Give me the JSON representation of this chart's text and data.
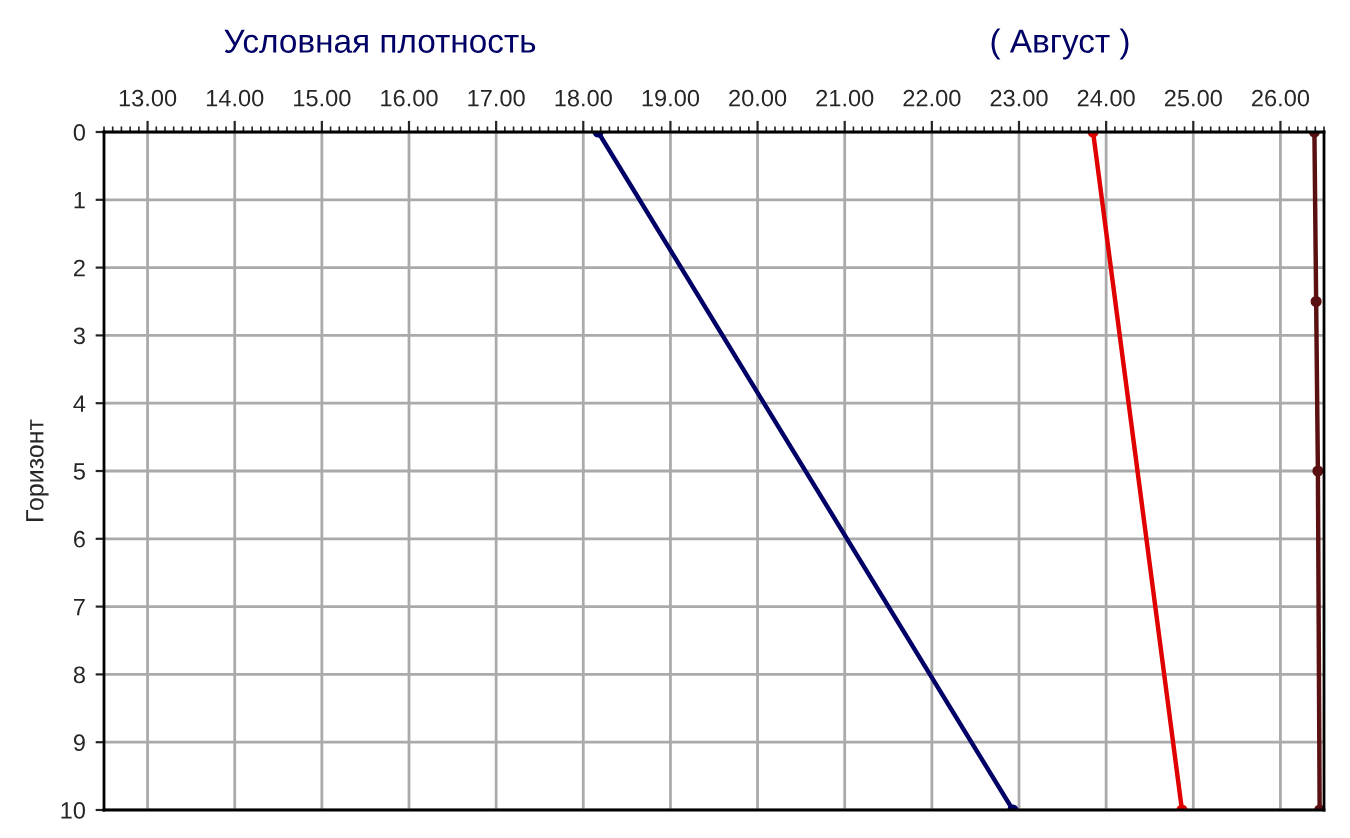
{
  "chart_data": {
    "type": "line",
    "title": "Условная плотность",
    "subtitle": "( Август )",
    "ylabel": "Горизонт",
    "series": [
      {
        "color": "#000066",
        "x": [
          18.17,
          22.93
        ],
        "values": [
          0,
          10
        ]
      },
      {
        "color": "#e00000",
        "x": [
          23.85,
          24.87
        ],
        "values": [
          0,
          10
        ]
      },
      {
        "color": "#5a1010",
        "x": [
          26.39,
          26.41,
          26.43,
          26.45
        ],
        "values": [
          0,
          2.5,
          5,
          10
        ]
      }
    ],
    "xlim": [
      12.5,
      26.5
    ],
    "xticks": [
      {
        "value": 13,
        "label": "13.00"
      },
      {
        "value": 14,
        "label": "14.00"
      },
      {
        "value": 15,
        "label": "15.00"
      },
      {
        "value": 16,
        "label": "16.00"
      },
      {
        "value": 17,
        "label": "17.00"
      },
      {
        "value": 18,
        "label": "18.00"
      },
      {
        "value": 19,
        "label": "19.00"
      },
      {
        "value": 20,
        "label": "20.00"
      },
      {
        "value": 21,
        "label": "21.00"
      },
      {
        "value": 22,
        "label": "22.00"
      },
      {
        "value": 23,
        "label": "23.00"
      },
      {
        "value": 24,
        "label": "24.00"
      },
      {
        "value": 25,
        "label": "25.00"
      },
      {
        "value": 26,
        "label": "26.00"
      }
    ],
    "ylim": [
      10,
      0
    ],
    "yticks": [
      0,
      1,
      2,
      3,
      4,
      5,
      6,
      7,
      8,
      9,
      10
    ],
    "grid": true,
    "marker": "circle",
    "line_style": "solid",
    "legend": false
  }
}
